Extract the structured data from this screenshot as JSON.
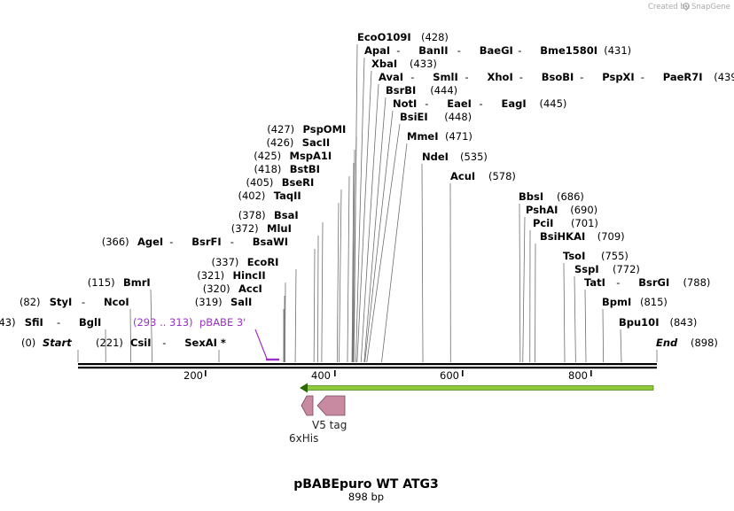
{
  "title": "pBABEpuro WT ATG3",
  "length_label": "898 bp",
  "credit": "Created by",
  "brand": "SnapGene",
  "sequence_length": 898,
  "colors": {
    "primer": "#9b30c8",
    "feature": "#c78aa0",
    "orf": "#8fc93a",
    "orf_dark": "#2a6a00"
  },
  "scale_ticks": [
    "200",
    "400",
    "600",
    "800"
  ],
  "scale_tick_values": [
    200,
    400,
    600,
    800
  ],
  "start_label": {
    "pos": "(0)",
    "name": "Start"
  },
  "end_label": {
    "pos": "(898)",
    "name": "End"
  },
  "left_sites": [
    {
      "pos": "(43)",
      "names": [
        "SfiI",
        "BglI"
      ]
    },
    {
      "pos": "(82)",
      "names": [
        "StyI",
        "NcoI"
      ]
    },
    {
      "pos": "(115)",
      "names": [
        "BmrI"
      ]
    },
    {
      "pos": "(221)",
      "names": [
        "CsiI",
        "SexAI *"
      ]
    },
    {
      "pos": "(319)",
      "names": [
        "SalI"
      ]
    },
    {
      "pos": "(320)",
      "names": [
        "AccI"
      ]
    },
    {
      "pos": "(321)",
      "names": [
        "HincII"
      ]
    },
    {
      "pos": "(337)",
      "names": [
        "EcoRI"
      ]
    },
    {
      "pos": "(366)",
      "names": [
        "AgeI",
        "BsrFI",
        "BsaWI"
      ]
    },
    {
      "pos": "(372)",
      "names": [
        "MluI"
      ]
    },
    {
      "pos": "(378)",
      "names": [
        "BsaI"
      ]
    },
    {
      "pos": "(402)",
      "names": [
        "TaqII"
      ]
    },
    {
      "pos": "(405)",
      "names": [
        "BseRI"
      ]
    },
    {
      "pos": "(418)",
      "names": [
        "BstBI"
      ]
    },
    {
      "pos": "(425)",
      "names": [
        "MspA1I"
      ]
    },
    {
      "pos": "(426)",
      "names": [
        "SacII"
      ]
    },
    {
      "pos": "(427)",
      "names": [
        "PspOMI"
      ]
    }
  ],
  "right_sites": [
    {
      "pos": "(428)",
      "names": [
        "EcoO109I"
      ]
    },
    {
      "pos": "(431)",
      "names": [
        "ApaI",
        "BanII",
        "BaeGI",
        "Bme1580I"
      ]
    },
    {
      "pos": "(433)",
      "names": [
        "XbaI"
      ]
    },
    {
      "pos": "(439)",
      "names": [
        "AvaI",
        "SmlI",
        "XhoI",
        "BsoBI",
        "PspXI",
        "PaeR7I"
      ]
    },
    {
      "pos": "(444)",
      "names": [
        "BsrBI"
      ]
    },
    {
      "pos": "(445)",
      "names": [
        "NotI",
        "EaeI",
        "EagI"
      ]
    },
    {
      "pos": "(448)",
      "names": [
        "BsiEI"
      ]
    },
    {
      "pos": "(471)",
      "names": [
        "MmeI"
      ]
    },
    {
      "pos": "(535)",
      "names": [
        "NdeI"
      ]
    },
    {
      "pos": "(578)",
      "names": [
        "AcuI"
      ]
    },
    {
      "pos": "(686)",
      "names": [
        "BbsI"
      ]
    },
    {
      "pos": "(690)",
      "names": [
        "PshAI"
      ]
    },
    {
      "pos": "(701)",
      "names": [
        "PciI"
      ]
    },
    {
      "pos": "(709)",
      "names": [
        "BsiHKAI"
      ]
    },
    {
      "pos": "(755)",
      "names": [
        "TsoI"
      ]
    },
    {
      "pos": "(772)",
      "names": [
        "SspI"
      ]
    },
    {
      "pos": "(788)",
      "names": [
        "TatI",
        "BsrGI"
      ]
    },
    {
      "pos": "(815)",
      "names": [
        "BpmI"
      ]
    },
    {
      "pos": "(843)",
      "names": [
        "Bpu10I"
      ]
    }
  ],
  "primer": {
    "range": "(293 .. 313)",
    "name": "pBABE 3'"
  },
  "features": [
    {
      "name": "V5 tag"
    },
    {
      "name": "6xHis"
    }
  ]
}
